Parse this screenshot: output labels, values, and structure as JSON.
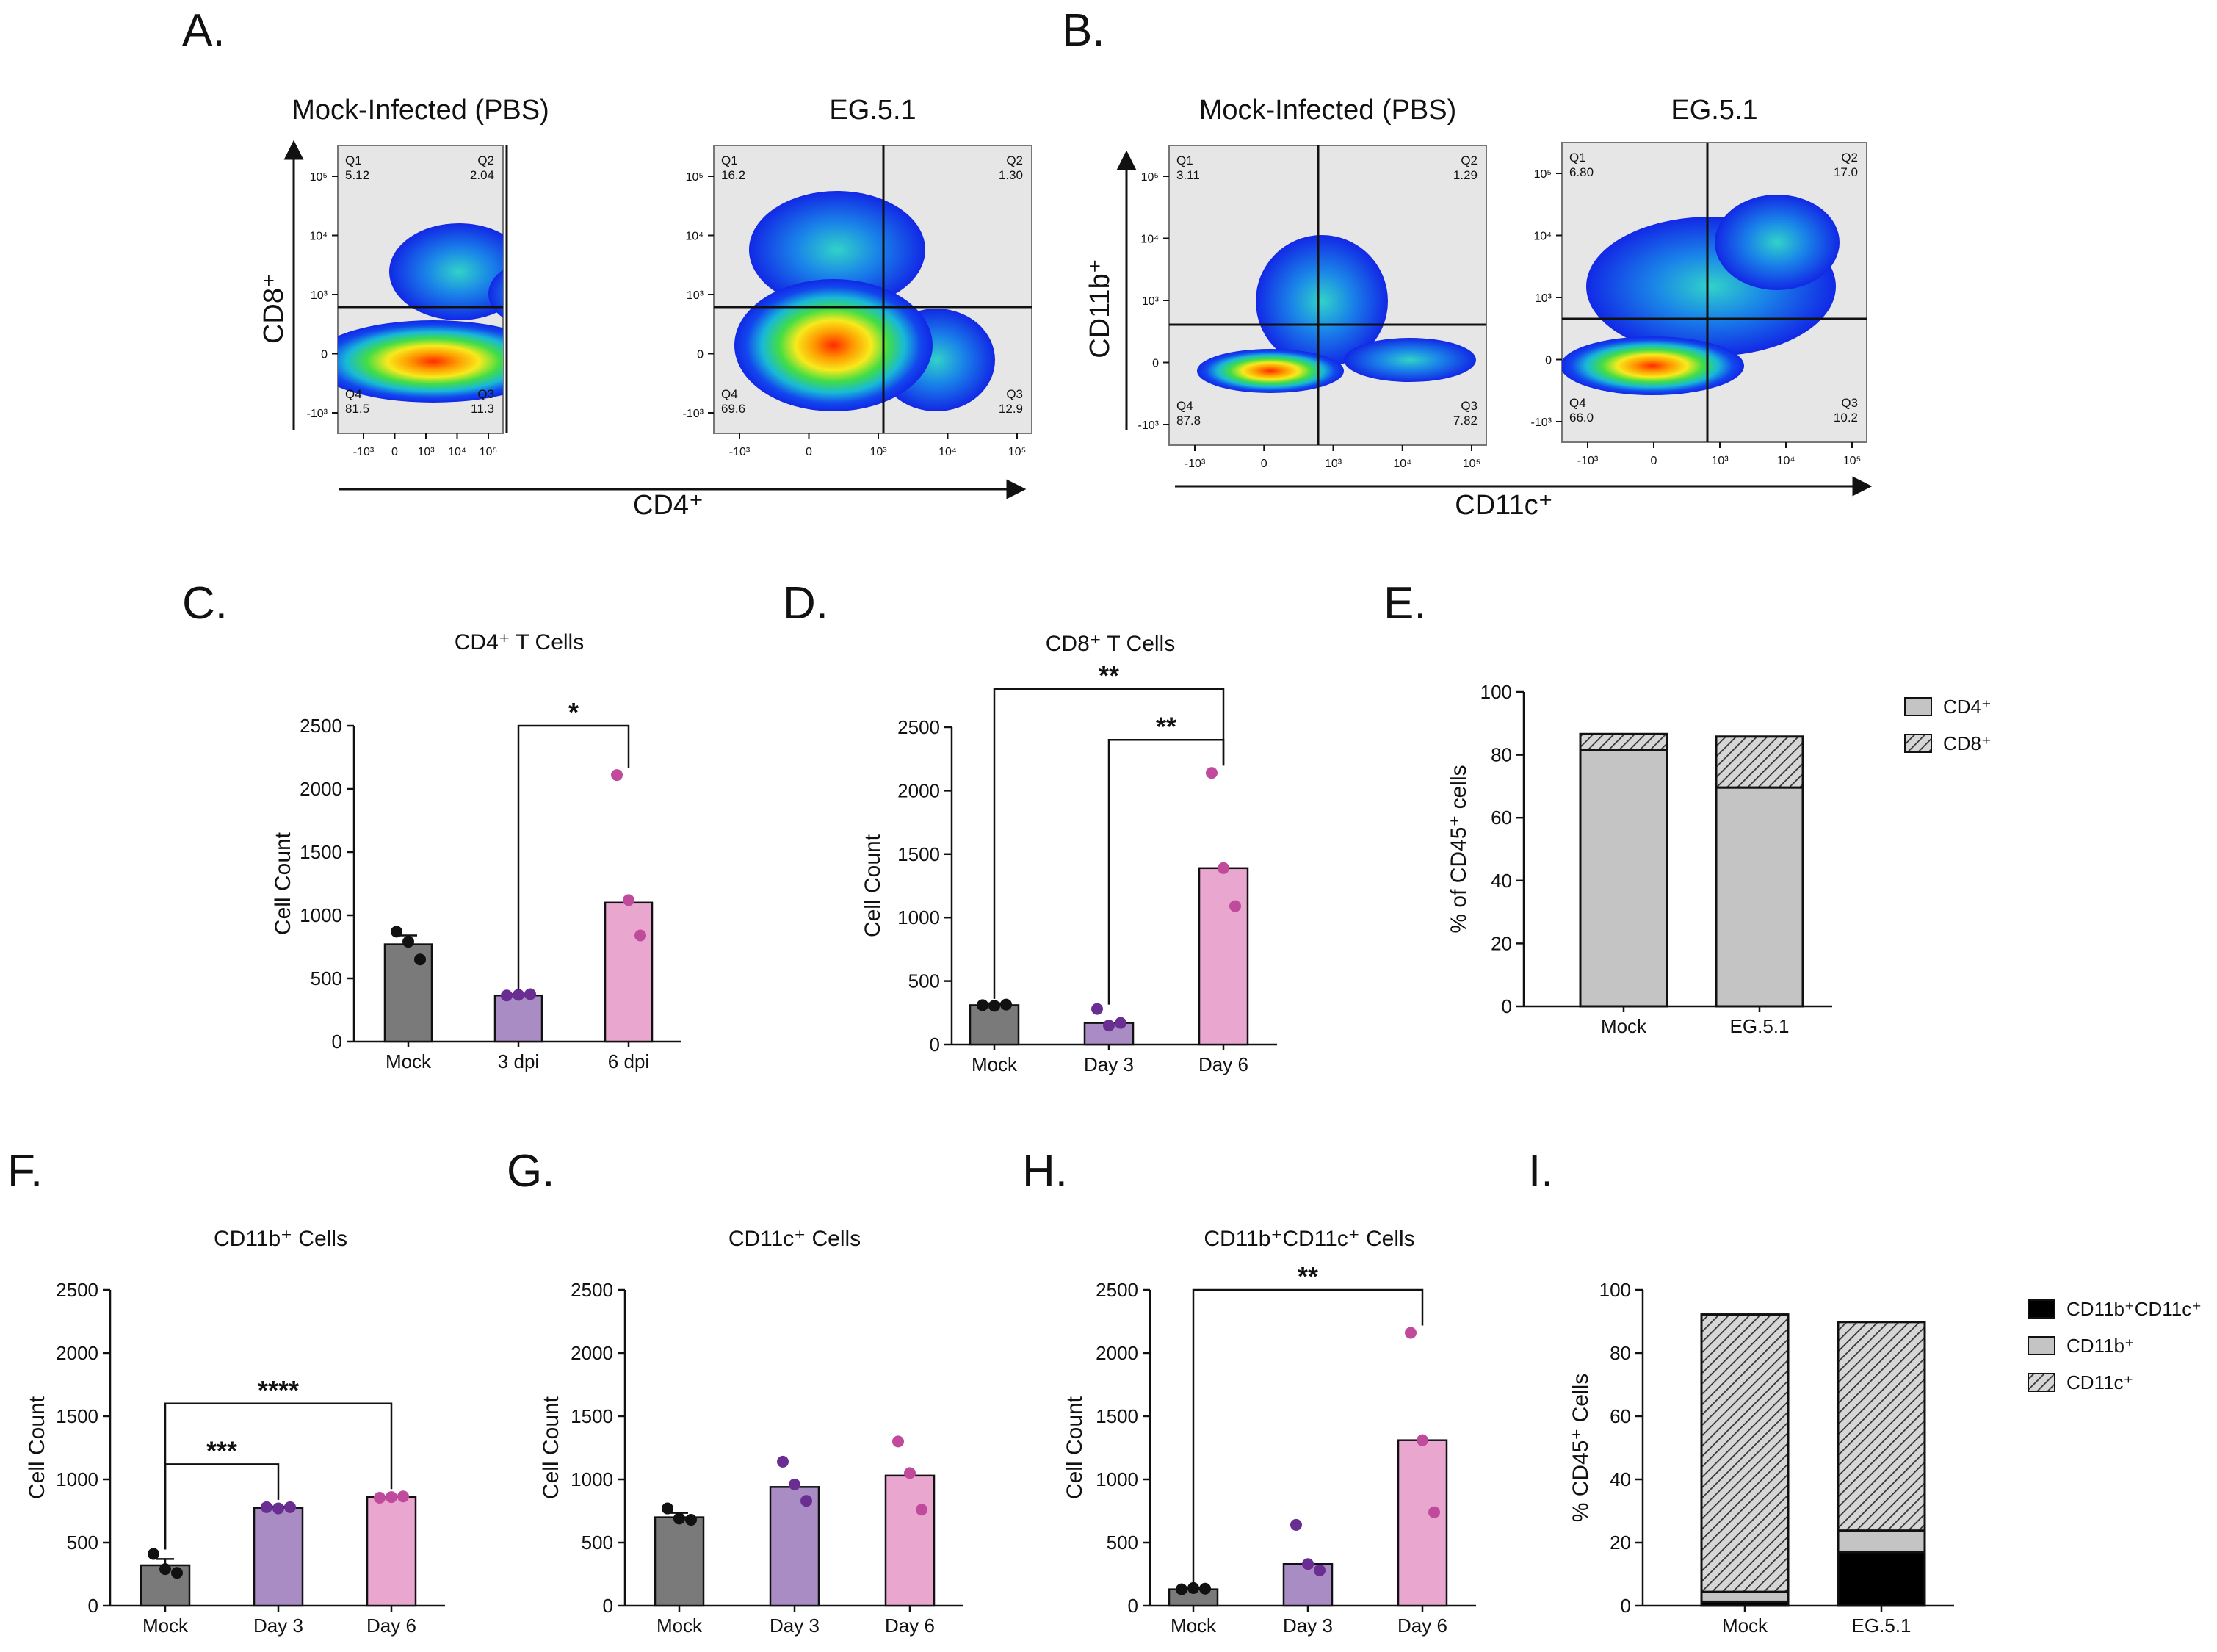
{
  "colors": {
    "mock_bar": "#7a7a7a",
    "day3_bar": "#a98cc4",
    "day6_bar": "#e9a6cf",
    "mock_point": "#111111",
    "day3_point": "#6a2e93",
    "day6_point": "#c04a9c",
    "gate_bg": "#e6e6e6",
    "stack_light": "#c4c4c4",
    "stack_black": "#000000"
  },
  "flow": [
    {
      "letter": "A.",
      "x_axis_title": "CD4⁺",
      "y_axis_title": "CD8⁺",
      "plots": [
        {
          "title": "Mock-Infected (PBS)",
          "y_ticks": [
            "10⁵",
            "10⁴",
            "10³",
            "0",
            "-10³"
          ],
          "x_ticks": [
            "-10³",
            "0",
            "10³",
            "10⁴",
            "10⁵"
          ],
          "quadrants": {
            "q1": {
              "label": "Q1",
              "value": "5.12"
            },
            "q2": {
              "label": "Q2",
              "value": "2.04"
            },
            "q3": {
              "label": "Q3",
              "value": "11.3"
            },
            "q4": {
              "label": "Q4",
              "value": "81.5"
            }
          }
        },
        {
          "title": "EG.5.1",
          "y_ticks": [
            "10⁵",
            "10⁴",
            "10³",
            "0",
            "-10³"
          ],
          "x_ticks": [
            "-10³",
            "0",
            "10³",
            "10⁴",
            "10⁵"
          ],
          "quadrants": {
            "q1": {
              "label": "Q1",
              "value": "16.2"
            },
            "q2": {
              "label": "Q2",
              "value": "1.30"
            },
            "q3": {
              "label": "Q3",
              "value": "12.9"
            },
            "q4": {
              "label": "Q4",
              "value": "69.6"
            }
          }
        }
      ]
    },
    {
      "letter": "B.",
      "x_axis_title": "CD11c⁺",
      "y_axis_title": "CD11b⁺",
      "plots": [
        {
          "title": "Mock-Infected (PBS)",
          "y_ticks": [
            "10⁵",
            "10⁴",
            "10³",
            "0",
            "-10³"
          ],
          "x_ticks": [
            "-10³",
            "0",
            "10³",
            "10⁴",
            "10⁵"
          ],
          "quadrants": {
            "q1": {
              "label": "Q1",
              "value": "3.11"
            },
            "q2": {
              "label": "Q2",
              "value": "1.29"
            },
            "q3": {
              "label": "Q3",
              "value": "7.82"
            },
            "q4": {
              "label": "Q4",
              "value": "87.8"
            }
          }
        },
        {
          "title": "EG.5.1",
          "y_ticks": [
            "10⁵",
            "10⁴",
            "10³",
            "0",
            "-10³"
          ],
          "x_ticks": [
            "-10³",
            "0",
            "10³",
            "10⁴",
            "10⁵"
          ],
          "quadrants": {
            "q1": {
              "label": "Q1",
              "value": "6.80"
            },
            "q2": {
              "label": "Q2",
              "value": "17.0"
            },
            "q3": {
              "label": "Q3",
              "value": "10.2"
            },
            "q4": {
              "label": "Q4",
              "value": "66.0"
            }
          }
        }
      ]
    }
  ],
  "chart_data": [
    {
      "id": "C",
      "letter": "C.",
      "type": "bar",
      "title": "CD4⁺ T Cells",
      "ylabel": "Cell Count",
      "ylim": [
        0,
        2500
      ],
      "yticks": [
        0,
        500,
        1000,
        1500,
        2000,
        2500
      ],
      "ytick_labels": [
        "0",
        "500",
        "1000",
        "1500",
        "2000",
        "2500"
      ],
      "categories": [
        "Mock",
        "3 dpi",
        "6 dpi"
      ],
      "values": [
        770,
        365,
        1100
      ],
      "sem": [
        70,
        10,
        0
      ],
      "points": [
        [
          870,
          790,
          650
        ],
        [
          365,
          370,
          375
        ],
        [
          2110,
          1120,
          840
        ]
      ],
      "sig": [
        {
          "from": 1,
          "to": 2,
          "level": 2500,
          "label": "*"
        }
      ]
    },
    {
      "id": "D",
      "letter": "D.",
      "type": "bar",
      "title": "CD8⁺ T Cells",
      "ylabel": "Cell Count",
      "ylim": [
        0,
        2500
      ],
      "yticks": [
        0,
        500,
        1000,
        1500,
        2000,
        2500
      ],
      "ytick_labels": [
        "0",
        "500",
        "1000",
        "1500",
        "2000",
        "2500"
      ],
      "categories": [
        "Mock",
        "Day 3",
        "Day 6"
      ],
      "values": [
        310,
        170,
        1390
      ],
      "sem": [
        15,
        0,
        0
      ],
      "points": [
        [
          310,
          305,
          315
        ],
        [
          280,
          150,
          170
        ],
        [
          2140,
          1390,
          1090
        ]
      ],
      "sig": [
        {
          "from": 0,
          "to": 2,
          "level": 2800,
          "label": "**"
        },
        {
          "from": 1,
          "to": 2,
          "level": 2400,
          "label": "**"
        }
      ]
    },
    {
      "id": "E",
      "letter": "E.",
      "type": "stacked_bar",
      "ylabel": "% of CD45⁺ cells",
      "ylim": [
        0,
        100
      ],
      "yticks": [
        0,
        20,
        40,
        60,
        80,
        100
      ],
      "ytick_labels": [
        "0",
        "20",
        "40",
        "60",
        "80",
        "100"
      ],
      "categories": [
        "Mock",
        "EG.5.1"
      ],
      "series": [
        {
          "name": "CD4⁺",
          "pattern": "gray",
          "values": [
            81.5,
            69.6
          ]
        },
        {
          "name": "CD8⁺",
          "pattern": "hatch",
          "values": [
            5.12,
            16.2
          ]
        }
      ]
    },
    {
      "id": "F",
      "letter": "F.",
      "type": "bar",
      "title": "CD11b⁺ Cells",
      "ylabel": "Cell Count",
      "ylim": [
        0,
        2500
      ],
      "yticks": [
        0,
        500,
        1000,
        1500,
        2000,
        2500
      ],
      "ytick_labels": [
        "0",
        "500",
        "1000",
        "1500",
        "2000",
        "2500"
      ],
      "categories": [
        "Mock",
        "Day 3",
        "Day 6"
      ],
      "values": [
        320,
        775,
        860
      ],
      "sem": [
        50,
        10,
        5
      ],
      "points": [
        [
          410,
          290,
          260
        ],
        [
          780,
          770,
          780
        ],
        [
          855,
          860,
          865
        ]
      ],
      "sig": [
        {
          "from": 0,
          "to": 1,
          "level": 1120,
          "label": "***"
        },
        {
          "from": 0,
          "to": 2,
          "level": 1600,
          "label": "****"
        }
      ]
    },
    {
      "id": "G",
      "letter": "G.",
      "type": "bar",
      "title": "CD11c⁺ Cells",
      "ylabel": "Cell Count",
      "ylim": [
        0,
        2500
      ],
      "yticks": [
        0,
        500,
        1000,
        1500,
        2000,
        2500
      ],
      "ytick_labels": [
        "0",
        "500",
        "1000",
        "1500",
        "2000",
        "2500"
      ],
      "categories": [
        "Mock",
        "Day 3",
        "Day 6"
      ],
      "values": [
        700,
        940,
        1030
      ],
      "sem": [
        35,
        0,
        0
      ],
      "points": [
        [
          770,
          690,
          680
        ],
        [
          1140,
          960,
          830
        ],
        [
          1300,
          1050,
          760
        ]
      ],
      "sig": []
    },
    {
      "id": "H",
      "letter": "H.",
      "type": "bar",
      "title": "CD11b⁺CD11c⁺ Cells",
      "ylabel": "Cell Count",
      "ylim": [
        0,
        2500
      ],
      "yticks": [
        0,
        500,
        1000,
        1500,
        2000,
        2500
      ],
      "ytick_labels": [
        "0",
        "500",
        "1000",
        "1500",
        "2000",
        "2500"
      ],
      "categories": [
        "Mock",
        "Day 3",
        "Day 6"
      ],
      "values": [
        130,
        330,
        1310
      ],
      "sem": [
        10,
        0,
        0
      ],
      "points": [
        [
          130,
          140,
          135
        ],
        [
          640,
          330,
          280
        ],
        [
          2160,
          1310,
          740
        ]
      ],
      "sig": [
        {
          "from": 0,
          "to": 2,
          "level": 2500,
          "label": "**"
        }
      ]
    },
    {
      "id": "I",
      "letter": "I.",
      "type": "stacked_bar",
      "ylabel": "% CD45⁺ Cells",
      "ylim": [
        0,
        100
      ],
      "yticks": [
        0,
        20,
        40,
        60,
        80,
        100
      ],
      "ytick_labels": [
        "0",
        "20",
        "40",
        "60",
        "80",
        "100"
      ],
      "categories": [
        "Mock",
        "EG.5.1"
      ],
      "series": [
        {
          "name": "CD11b⁺CD11c⁺",
          "pattern": "black",
          "values": [
            1.3,
            17.0
          ]
        },
        {
          "name": "CD11b⁺",
          "pattern": "gray",
          "values": [
            3.1,
            6.8
          ]
        },
        {
          "name": "CD11c⁺",
          "pattern": "hatch",
          "values": [
            87.8,
            66.0
          ]
        }
      ]
    }
  ]
}
